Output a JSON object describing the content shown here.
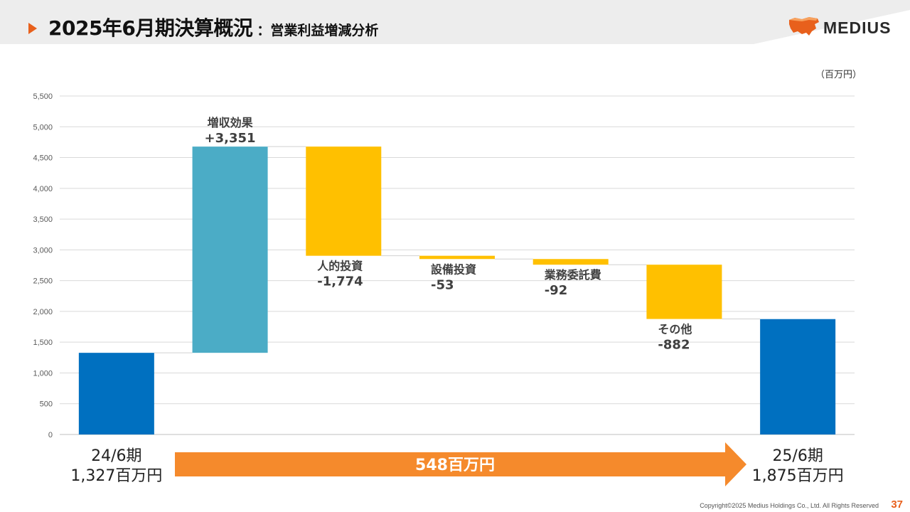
{
  "header": {
    "title": "2025年6月期決算概況",
    "subtitle": "：営業利益増減分析",
    "logo_text": "MEDIUS"
  },
  "unit_label": "（百万円）",
  "footer": {
    "copyright": "Copyright©2025 Medius Holdings Co., Ltd. All Rights Reserved",
    "page": "37"
  },
  "colors": {
    "accent": "#e8601c",
    "total_bar": "#0070c0",
    "increase_bar": "#4bacc6",
    "decrease_bar": "#ffc000",
    "arrow": "#f58a2c"
  },
  "chart_data": {
    "type": "bar",
    "subtype": "waterfall",
    "ylim": [
      0,
      5500
    ],
    "yticks": [
      "0",
      "500",
      "1,000",
      "1,500",
      "2,000",
      "2,500",
      "3,000",
      "3,500",
      "4,000",
      "4,500",
      "5,000",
      "5,500"
    ],
    "grid": true,
    "bars": [
      {
        "kind": "total",
        "start": 0,
        "end": 1327,
        "label_lines": [],
        "axis_label_lines": [
          "24/6期",
          "1,327百万円"
        ]
      },
      {
        "kind": "increase",
        "start": 1327,
        "end": 4678,
        "label_lines": [
          "増収効果",
          "+3,351"
        ],
        "axis_label_lines": []
      },
      {
        "kind": "decrease",
        "start": 4678,
        "end": 2904,
        "label_lines": [
          "人的投資",
          "-1,774"
        ],
        "axis_label_lines": []
      },
      {
        "kind": "decrease",
        "start": 2904,
        "end": 2851,
        "label_lines": [
          "設備投資",
          "-53"
        ],
        "axis_label_lines": []
      },
      {
        "kind": "decrease",
        "start": 2851,
        "end": 2759,
        "label_lines": [
          "業務委託費",
          "-92"
        ],
        "axis_label_lines": []
      },
      {
        "kind": "decrease",
        "start": 2759,
        "end": 1877,
        "label_lines": [
          "その他",
          "-882"
        ],
        "axis_label_lines": []
      },
      {
        "kind": "total",
        "start": 0,
        "end": 1875,
        "label_lines": [],
        "axis_label_lines": [
          "25/6期",
          "1,875百万円"
        ]
      }
    ],
    "change_arrow_label": "548百万円"
  }
}
